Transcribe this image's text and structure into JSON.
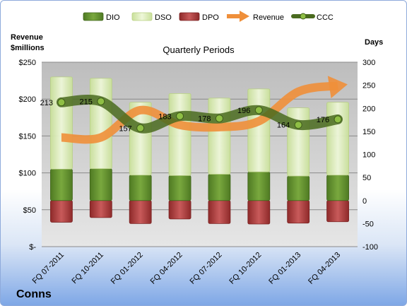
{
  "company": "Conns",
  "colors": {
    "dio": "#5c8a2e",
    "dso": "#d8eab0",
    "dpo": "#b03a3a",
    "revenue": "#ef8f3a",
    "ccc": "#4a6b1f"
  },
  "chart_data": {
    "type": "bar",
    "title": "Quarterly Periods",
    "left_axis_label": "Revenue\n$millions",
    "right_axis_label": "Days",
    "left_ylim": [
      0,
      250
    ],
    "right_ylim": [
      -100,
      300
    ],
    "left_ticks": [
      "$-",
      "$50",
      "$100",
      "$150",
      "$200",
      "$250"
    ],
    "right_ticks": [
      "-100",
      "-50",
      "0",
      "50",
      "100",
      "150",
      "200",
      "250",
      "300"
    ],
    "categories": [
      "FQ 07-2011",
      "FQ 10-2011",
      "FQ 01-2012",
      "FQ 04-2012",
      "FQ 07-2012",
      "FQ 10-2012",
      "FQ 01-2013",
      "FQ 04-2013"
    ],
    "legend": [
      "DIO",
      "DSO",
      "DPO",
      "Revenue",
      "CCC"
    ],
    "legend_position": "top",
    "grid": true,
    "series": [
      {
        "name": "DIO",
        "axis": "right",
        "values": [
          68,
          69,
          55,
          54,
          57,
          62,
          53,
          55
        ]
      },
      {
        "name": "DSO",
        "axis": "right",
        "values": [
          200,
          196,
          158,
          178,
          165,
          180,
          148,
          158
        ]
      },
      {
        "name": "DPO",
        "axis": "right",
        "values": [
          -47,
          -37,
          -50,
          -40,
          -50,
          -51,
          -49,
          -46
        ]
      },
      {
        "name": "Revenue",
        "axis": "left",
        "values": [
          148,
          148,
          185,
          165,
          162,
          170,
          210,
          218
        ]
      },
      {
        "name": "CCC",
        "axis": "right",
        "values": [
          213,
          215,
          157,
          183,
          178,
          196,
          164,
          176
        ]
      }
    ],
    "ccc_labels": [
      "213",
      "215",
      "157",
      "183",
      "178",
      "196",
      "164",
      "176"
    ]
  }
}
